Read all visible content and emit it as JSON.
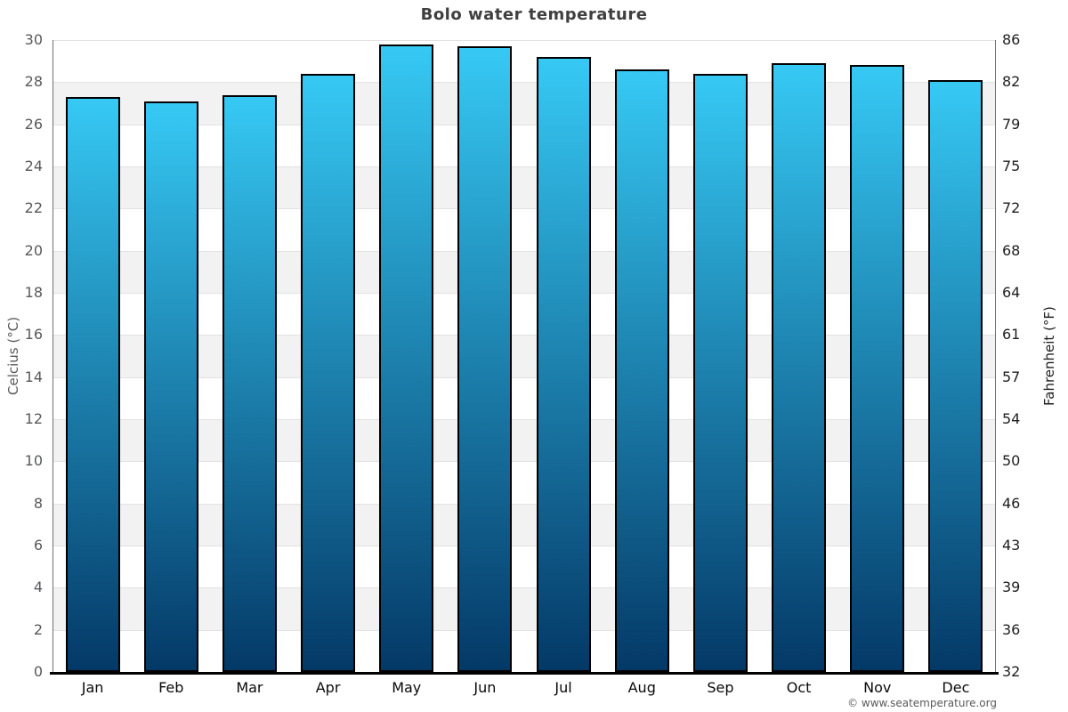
{
  "footer": "© www.seatemperature.org",
  "chart_data": {
    "type": "bar",
    "title": "Bolo water temperature",
    "categories": [
      "Jan",
      "Feb",
      "Mar",
      "Apr",
      "May",
      "Jun",
      "Jul",
      "Aug",
      "Sep",
      "Oct",
      "Nov",
      "Dec"
    ],
    "values": [
      27.3,
      27.1,
      27.4,
      28.4,
      29.8,
      29.7,
      29.2,
      28.6,
      28.4,
      28.9,
      28.8,
      28.1
    ],
    "series_name": "Water temperature",
    "xlabel": "",
    "ylabel_left": "Celcius (°C)",
    "ylabel_right": "Fahrenheit (°F)",
    "ylim": [
      0,
      30
    ],
    "ytick_step": 2,
    "yticks_celsius": [
      "30",
      "28",
      "26",
      "24",
      "22",
      "20",
      "18",
      "16",
      "14",
      "12",
      "10",
      "8",
      "6",
      "4",
      "2",
      "0"
    ],
    "yticks_fahrenheit": [
      "86",
      "82",
      "79",
      "75",
      "72",
      "68",
      "64",
      "61",
      "57",
      "54",
      "50",
      "46",
      "43",
      "39",
      "36",
      "32"
    ],
    "grid": "horizontal stripe bands every 2°C, alternating white and light gray",
    "legend": "none",
    "colors": {
      "bar_gradient_top": "#36c9f4",
      "bar_gradient_bottom": "#043967",
      "bar_border": "#000000",
      "band_white": "#ffffff",
      "band_gray": "#f2f2f2",
      "gridline": "#e2e2e2",
      "title_text": "#3f3f3f",
      "left_axis_text": "#58595b",
      "right_axis_text": "#1f1f1f"
    }
  }
}
